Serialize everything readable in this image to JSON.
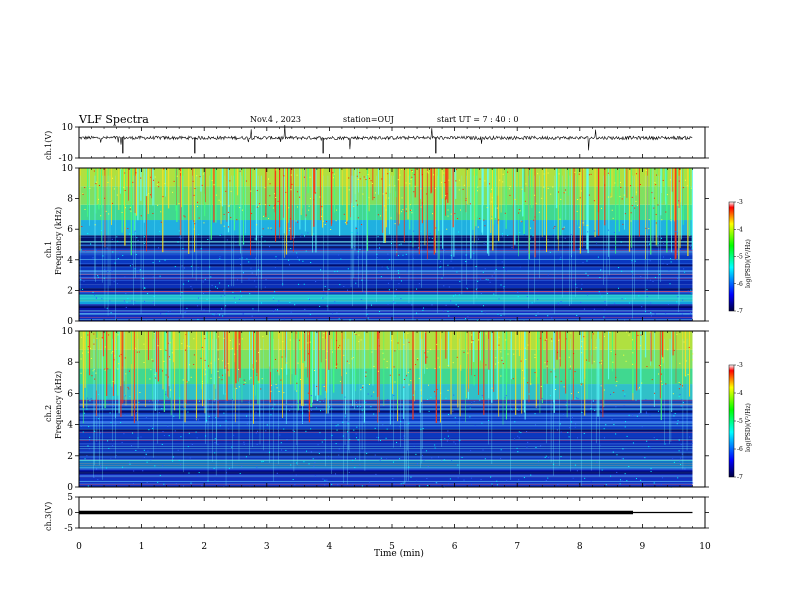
{
  "header": {
    "title": "VLF Spectra",
    "date": "Nov.4 , 2023",
    "station": "station=OUJ",
    "start": "start UT = 7 : 40 : 0"
  },
  "colors": {
    "background": "#000080",
    "spectrogram_low": "#0000aa",
    "spectrogram_mid": "#00e0ff",
    "spectrogram_high": "#ff2000",
    "trace": "#000000"
  },
  "chart_data": [
    {
      "type": "line",
      "panel": "ch1-waveform",
      "ylabel": "ch.1(V)",
      "ylim": [
        -10,
        10
      ],
      "yticks": [
        "10",
        "-10"
      ],
      "xlim": [
        0,
        10
      ],
      "series": [
        {
          "values_note_level": 3,
          "values": [
            3,
            3,
            3,
            3,
            3,
            3,
            3,
            3,
            3,
            3,
            3
          ]
        }
      ]
    },
    {
      "type": "heatmap",
      "panel": "ch1-spectrogram",
      "ylabel": "Frequency (kHz)",
      "channel_label": "ch.1",
      "ylim": [
        0,
        10
      ],
      "yticks": [
        "0",
        "2",
        "4",
        "6",
        "8",
        "10"
      ],
      "xlim": [
        0,
        10
      ],
      "colorbar": {
        "label": "log(PSD)(V²/Hz)",
        "range": [
          -7,
          -3
        ],
        "ticks": [
          "-3",
          "-4",
          "-5",
          "-6",
          "-7"
        ]
      }
    },
    {
      "type": "heatmap",
      "panel": "ch2-spectrogram",
      "ylabel": "Frequency (kHz)",
      "channel_label": "ch.2",
      "ylim": [
        0,
        10
      ],
      "yticks": [
        "0",
        "2",
        "4",
        "6",
        "8",
        "10"
      ],
      "xlim": [
        0,
        10
      ],
      "colorbar": {
        "label": "log(PSD)(V²/Hz)",
        "range": [
          -7,
          -3
        ],
        "ticks": [
          "-3",
          "-4",
          "-5",
          "-6",
          "-7"
        ]
      }
    },
    {
      "type": "line",
      "panel": "ch3-waveform",
      "ylabel": "ch.3(V)",
      "ylim": [
        -5,
        5
      ],
      "yticks": [
        "5",
        "0",
        "-5"
      ],
      "xlim": [
        0,
        10
      ],
      "series": [
        {
          "x": [
            0,
            8.85,
            8.85,
            9.8
          ],
          "values": [
            0,
            0,
            0,
            0
          ]
        }
      ]
    }
  ],
  "xaxis": {
    "label": "Time (min)",
    "ticks": [
      "0",
      "1",
      "2",
      "3",
      "4",
      "5",
      "6",
      "7",
      "8",
      "9",
      "10"
    ]
  }
}
